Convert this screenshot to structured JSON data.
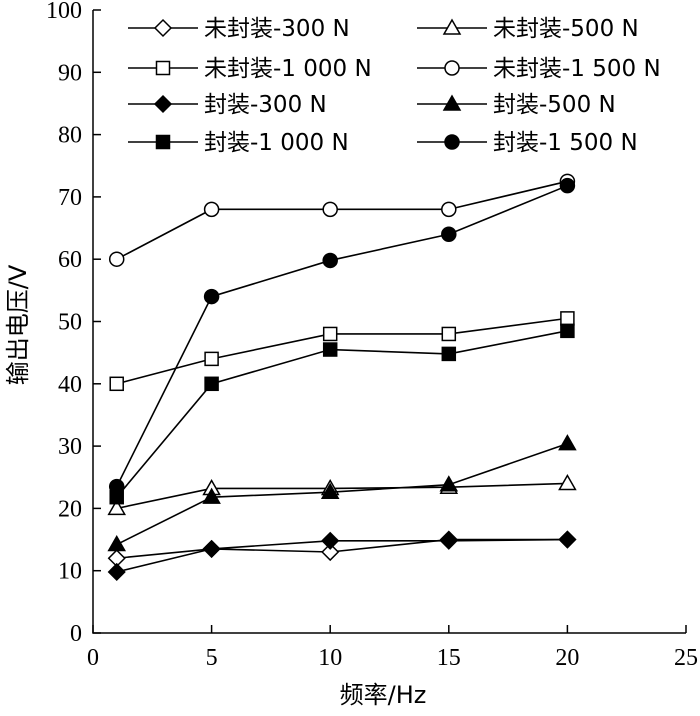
{
  "chart_data": {
    "type": "line",
    "xlabel": "频率/Hz",
    "ylabel": "输出电压/V",
    "xlim": [
      0,
      25
    ],
    "ylim": [
      0,
      100
    ],
    "xticks": [
      0,
      5,
      10,
      15,
      20,
      25
    ],
    "yticks": [
      0,
      10,
      20,
      30,
      40,
      50,
      60,
      70,
      80,
      90,
      100
    ],
    "grid": false,
    "legend_position": "top",
    "series": [
      {
        "name": "未封装-300 N",
        "marker": "diamond-open",
        "x": [
          1,
          5,
          10,
          15,
          20
        ],
        "y": [
          12,
          13.5,
          13,
          15,
          15
        ]
      },
      {
        "name": "未封装-500 N",
        "marker": "triangle-open",
        "x": [
          1,
          5,
          10,
          15,
          20
        ],
        "y": [
          20,
          23.2,
          23.2,
          23.4,
          24
        ]
      },
      {
        "name": "未封装-1 000 N",
        "marker": "square-open",
        "x": [
          1,
          5,
          10,
          15,
          20
        ],
        "y": [
          40,
          44,
          48,
          48,
          50.5
        ]
      },
      {
        "name": "未封装-1 500 N",
        "marker": "circle-open",
        "x": [
          1,
          5,
          10,
          15,
          20
        ],
        "y": [
          60,
          68,
          68,
          68,
          72.5
        ]
      },
      {
        "name": "封装-300 N",
        "marker": "diamond-filled",
        "x": [
          1,
          5,
          10,
          15,
          20
        ],
        "y": [
          9.8,
          13.5,
          14.8,
          14.8,
          15
        ]
      },
      {
        "name": "封装-500 N",
        "marker": "triangle-filled",
        "x": [
          1,
          5,
          10,
          15,
          20
        ],
        "y": [
          14.2,
          21.8,
          22.6,
          23.8,
          30.4
        ]
      },
      {
        "name": "封装-1 000 N",
        "marker": "square-filled",
        "x": [
          1,
          5,
          10,
          15,
          20
        ],
        "y": [
          21.8,
          40,
          45.5,
          44.8,
          48.5
        ]
      },
      {
        "name": "封装-1 500 N",
        "marker": "circle-filled",
        "x": [
          1,
          5,
          10,
          15,
          20
        ],
        "y": [
          23.5,
          54,
          59.8,
          64,
          71.8
        ]
      }
    ]
  }
}
